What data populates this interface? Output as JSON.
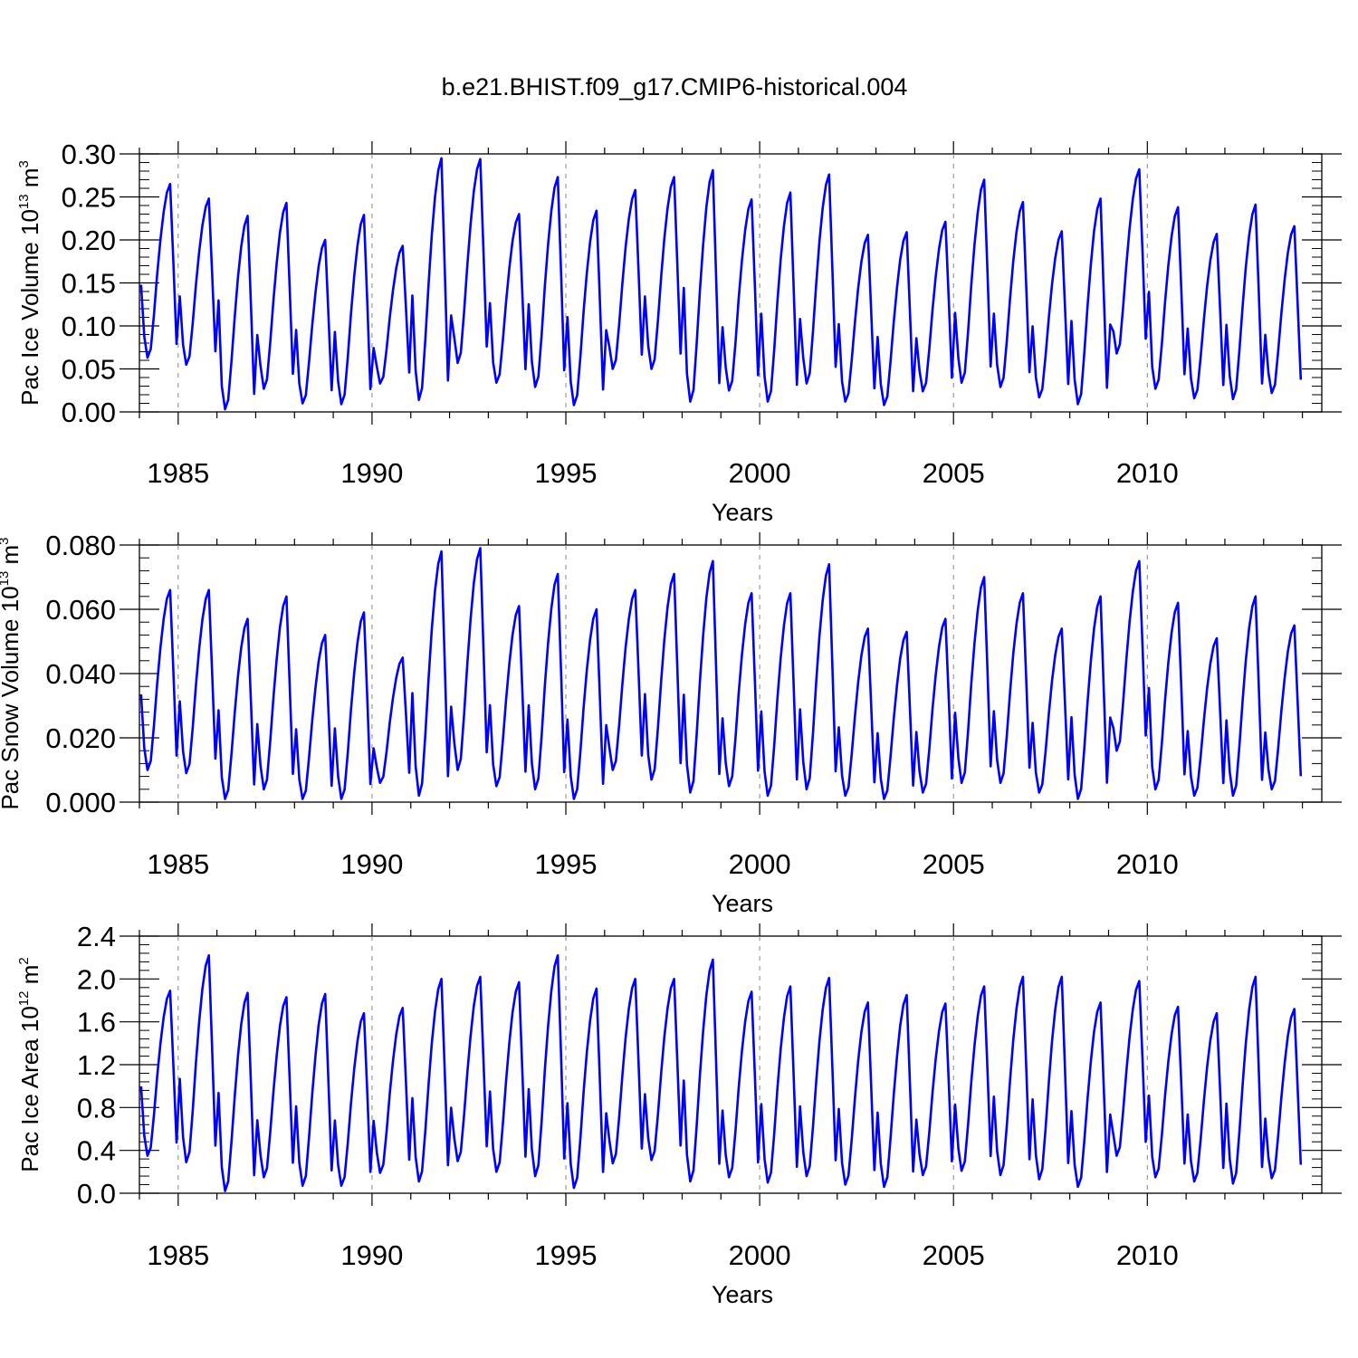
{
  "title": "b.e21.BHIST.f09_g17.CMIP6-historical.004",
  "colors": {
    "series": "#0000ff",
    "axis": "#000000",
    "gridline": "#888888"
  },
  "chart_data": [
    {
      "type": "line",
      "title": "b.e21.BHIST.f09_g17.CMIP6-historical.004",
      "ylabel": {
        "main": "Pac Ice Volume 10",
        "exp": "13",
        "unit": " m",
        "unit_exp": "3"
      },
      "xlabel": "Years",
      "xlim": [
        1984.0,
        2014.0
      ],
      "ylim": [
        0.0,
        0.3
      ],
      "yticks": [
        "0.00",
        "0.05",
        "0.10",
        "0.15",
        "0.20",
        "0.25",
        "0.30"
      ],
      "ytick_values": [
        0.0,
        0.05,
        0.1,
        0.15,
        0.2,
        0.25,
        0.3
      ],
      "xticks": [
        "1985",
        "1990",
        "1995",
        "2000",
        "2005",
        "2010"
      ],
      "xtick_values": [
        1985,
        1990,
        1995,
        2000,
        2005,
        2010
      ],
      "series": [
        {
          "name": "Pac Ice Volume",
          "annual_peaks": [
            0.265,
            0.248,
            0.228,
            0.243,
            0.2,
            0.229,
            0.193,
            0.295,
            0.294,
            0.23,
            0.273,
            0.234,
            0.258,
            0.273,
            0.281,
            0.247,
            0.255,
            0.276,
            0.206,
            0.209,
            0.221,
            0.27,
            0.244,
            0.21,
            0.248,
            0.282,
            0.238,
            0.207,
            0.241,
            0.216
          ],
          "annual_minima": [
            0.063,
            0.055,
            0.003,
            0.027,
            0.01,
            0.009,
            0.033,
            0.014,
            0.057,
            0.034,
            0.029,
            0.008,
            0.05,
            0.05,
            0.012,
            0.025,
            0.012,
            0.033,
            0.012,
            0.008,
            0.024,
            0.034,
            0.029,
            0.017,
            0.009,
            0.068,
            0.027,
            0.016,
            0.015,
            0.022
          ]
        }
      ]
    },
    {
      "type": "line",
      "ylabel": {
        "main": "Pac Snow Volume 10",
        "exp": "13",
        "unit": " m",
        "unit_exp": "3"
      },
      "xlabel": "Years",
      "xlim": [
        1984.0,
        2014.0
      ],
      "ylim": [
        0.0,
        0.08
      ],
      "yticks": [
        "0.000",
        "0.020",
        "0.040",
        "0.060",
        "0.080"
      ],
      "ytick_values": [
        0.0,
        0.02,
        0.04,
        0.06,
        0.08
      ],
      "xticks": [
        "1985",
        "1990",
        "1995",
        "2000",
        "2005",
        "2010"
      ],
      "xtick_values": [
        1985,
        1990,
        1995,
        2000,
        2005,
        2010
      ],
      "series": [
        {
          "name": "Pac Snow Volume",
          "annual_peaks": [
            0.066,
            0.066,
            0.057,
            0.064,
            0.052,
            0.059,
            0.045,
            0.078,
            0.079,
            0.061,
            0.071,
            0.06,
            0.066,
            0.071,
            0.075,
            0.065,
            0.065,
            0.074,
            0.054,
            0.053,
            0.057,
            0.07,
            0.065,
            0.054,
            0.064,
            0.075,
            0.062,
            0.051,
            0.064,
            0.055
          ],
          "annual_minima": [
            0.01,
            0.009,
            0.001,
            0.004,
            0.001,
            0.001,
            0.006,
            0.002,
            0.01,
            0.005,
            0.004,
            0.001,
            0.01,
            0.007,
            0.003,
            0.005,
            0.002,
            0.004,
            0.002,
            0.001,
            0.003,
            0.006,
            0.006,
            0.003,
            0.001,
            0.016,
            0.004,
            0.002,
            0.002,
            0.004
          ]
        }
      ]
    },
    {
      "type": "line",
      "ylabel": {
        "main": "Pac Ice Area 10",
        "exp": "12",
        "unit": " m",
        "unit_exp": "2"
      },
      "xlabel": "Years",
      "xlim": [
        1984.0,
        2014.0
      ],
      "ylim": [
        0.0,
        2.4
      ],
      "yticks": [
        "0.0",
        "0.4",
        "0.8",
        "1.2",
        "1.6",
        "2.0",
        "2.4"
      ],
      "ytick_values": [
        0.0,
        0.4,
        0.8,
        1.2,
        1.6,
        2.0,
        2.4
      ],
      "xticks": [
        "1985",
        "1990",
        "1995",
        "2000",
        "2005",
        "2010"
      ],
      "xtick_values": [
        1985,
        1990,
        1995,
        2000,
        2005,
        2010
      ],
      "series": [
        {
          "name": "Pac Ice Area",
          "annual_peaks": [
            1.89,
            2.22,
            1.87,
            1.83,
            1.86,
            1.68,
            1.73,
            2.0,
            2.02,
            1.97,
            2.22,
            1.91,
            2.0,
            2.0,
            2.18,
            1.88,
            1.93,
            2.01,
            1.78,
            1.85,
            1.77,
            1.93,
            2.02,
            2.02,
            1.78,
            1.98,
            1.74,
            1.68,
            2.02,
            1.72
          ],
          "annual_minima": [
            0.35,
            0.29,
            0.02,
            0.15,
            0.07,
            0.07,
            0.19,
            0.11,
            0.3,
            0.2,
            0.16,
            0.05,
            0.28,
            0.31,
            0.11,
            0.15,
            0.1,
            0.16,
            0.08,
            0.06,
            0.17,
            0.21,
            0.17,
            0.13,
            0.06,
            0.35,
            0.15,
            0.11,
            0.09,
            0.14
          ]
        }
      ]
    }
  ]
}
